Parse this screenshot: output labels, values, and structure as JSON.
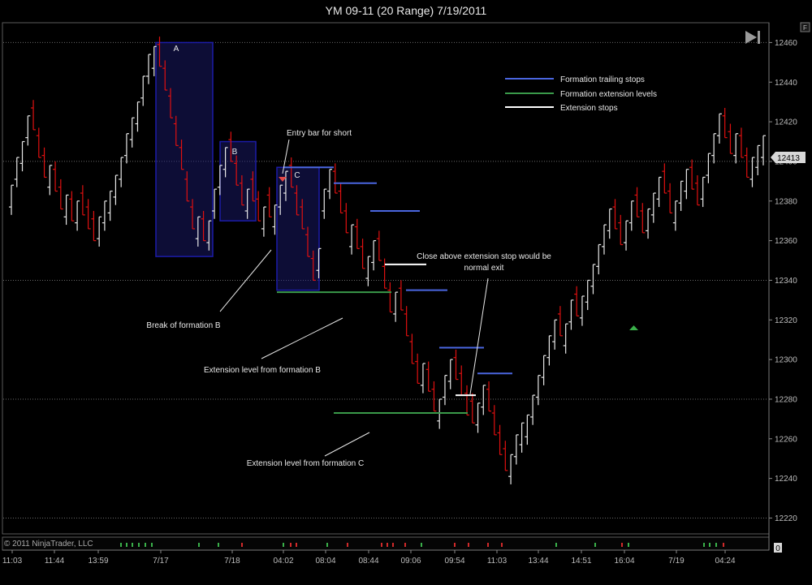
{
  "title": "YM 09-11 (20 Range)  7/19/2011",
  "panel_button": "F",
  "copyright": "© 2011 NinjaTrader, LLC",
  "subpanel_value": "0",
  "last_price_label": "12413",
  "colors": {
    "up_bar": "#e8e8e8",
    "down_bar": "#e01010",
    "trailing_stop": "#4a66e0",
    "extension_level": "#3a9a4a",
    "extension_stop": "#ffffff",
    "formation_box": "#1c1ca8",
    "grid": "#6a6a6a"
  },
  "legend": [
    {
      "label": "Formation trailing stops",
      "color": "#4a66e0"
    },
    {
      "label": "Formation extension levels",
      "color": "#3a9a4a"
    },
    {
      "label": "Extension stops",
      "color": "#ffffff"
    }
  ],
  "annotations": {
    "A": "A",
    "B": "B",
    "C": "C",
    "entry": "Entry bar for short",
    "break_b": "Break of formation B",
    "ext_b": "Extension level from formation B",
    "ext_c": "Extension level from formation C",
    "close_above_1": "Close above extension stop would be",
    "close_above_2": "normal exit"
  },
  "chart_data": {
    "type": "bar",
    "instrument": "YM 09-11 (20 Range)",
    "date": "7/19/2011",
    "ylim": [
      12212,
      12470
    ],
    "yticks": [
      12220,
      12240,
      12260,
      12280,
      12300,
      12320,
      12340,
      12360,
      12380,
      12400,
      12420,
      12440,
      12460
    ],
    "grid_levels": [
      12220,
      12280,
      12340,
      12400,
      12460
    ],
    "xtick_labels": [
      "11:03",
      "11:44",
      "13:59",
      "7/17",
      "7/18",
      "04:02",
      "08:04",
      "08:44",
      "09:06",
      "09:54",
      "11:03",
      "13:44",
      "14:51",
      "16:04",
      "7/19",
      "04:24"
    ],
    "last_price": 12413,
    "closes": [
      12388,
      12402,
      12410,
      12423,
      12416,
      12402,
      12392,
      12398,
      12385,
      12376,
      12383,
      12370,
      12380,
      12373,
      12366,
      12360,
      12372,
      12380,
      12385,
      12393,
      12402,
      12414,
      12422,
      12430,
      12443,
      12454,
      12458,
      12448,
      12436,
      12422,
      12408,
      12396,
      12380,
      12366,
      12372,
      12360,
      12370,
      12386,
      12398,
      12407,
      12400,
      12388,
      12378,
      12386,
      12380,
      12370,
      12377,
      12372,
      12378,
      12388,
      12395,
      12387,
      12373,
      12366,
      12352,
      12340,
      12356,
      12386,
      12396,
      12384,
      12374,
      12364,
      12368,
      12356,
      12346,
      12352,
      12360,
      12350,
      12336,
      12324,
      12334,
      12325,
      12312,
      12298,
      12288,
      12298,
      12284,
      12274,
      12280,
      12292,
      12300,
      12290,
      12282,
      12272,
      12268,
      12278,
      12287,
      12274,
      12262,
      12252,
      12244,
      12252,
      12262,
      12268,
      12272,
      12282,
      12292,
      12302,
      12312,
      12320,
      12312,
      12318,
      12330,
      12322,
      12332,
      12340,
      12348,
      12358,
      12368,
      12376,
      12366,
      12358,
      12370,
      12380,
      12372,
      12364,
      12376,
      12384,
      12392,
      12384,
      12374,
      12380,
      12390,
      12396,
      12386,
      12378,
      12392,
      12404,
      12414,
      12424,
      12412,
      12404,
      12414,
      12402,
      12392,
      12402,
      12408,
      12413
    ],
    "formations": [
      {
        "label": "A",
        "high": 12460,
        "low": 12352
      },
      {
        "label": "B",
        "high": 12410,
        "low": 12370
      },
      {
        "label": "C",
        "high": 12397,
        "low": 12335
      }
    ],
    "trailing_stops": [
      12397,
      12389,
      12375,
      12335,
      12306,
      12293
    ],
    "extension_levels": [
      {
        "label": "Extension level from formation B",
        "value": 12334
      },
      {
        "label": "Extension level from formation C",
        "value": 12273
      }
    ],
    "extension_stops": [
      12348,
      12282
    ]
  }
}
